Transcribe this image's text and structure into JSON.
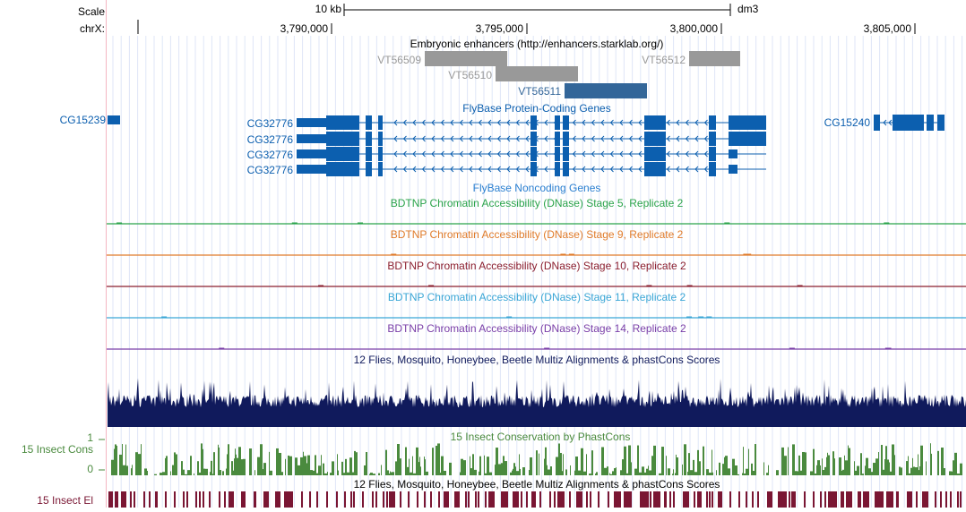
{
  "ruler": {
    "scale_label": "Scale",
    "scale_value": "10 kb",
    "assembly": "dm3",
    "chrom_label": "chrX:",
    "ticks": [
      "3,790,000",
      "3,795,000",
      "3,800,000",
      "3,805,000"
    ]
  },
  "tracks": {
    "enhancers": {
      "title": "Embryonic enhancers (http://enhancers.starklab.org/)",
      "items": [
        {
          "name": "VT56509",
          "color": "#999999"
        },
        {
          "name": "VT56510",
          "color": "#999999"
        },
        {
          "name": "VT56512",
          "color": "#999999"
        },
        {
          "name": "VT56511",
          "color": "#336699"
        }
      ]
    },
    "coding_genes": {
      "title": "FlyBase Protein-Coding Genes",
      "color": "#0c5faf",
      "genes": [
        "CG15239",
        "CG32776",
        "CG32776",
        "CG32776",
        "CG32776",
        "CG15240"
      ]
    },
    "noncoding_genes": {
      "title": "FlyBase Noncoding Genes",
      "color": "#2a7fd0"
    },
    "dnase": [
      {
        "title": "BDTNP Chromatin Accessibility (DNase) Stage 5, Replicate 2",
        "color": "#2aa34a"
      },
      {
        "title": "BDTNP Chromatin Accessibility (DNase) Stage 9, Replicate 2",
        "color": "#e07b2a"
      },
      {
        "title": "BDTNP Chromatin Accessibility (DNase) Stage 10, Replicate 2",
        "color": "#8b1f2f"
      },
      {
        "title": "BDTNP Chromatin Accessibility (DNase) Stage 11, Replicate 2",
        "color": "#3aa6d6"
      },
      {
        "title": "BDTNP Chromatin Accessibility (DNase) Stage 14, Replicate 2",
        "color": "#7a3fa8"
      }
    ],
    "multiz": {
      "title": "12 Flies, Mosquito, Honeybee, Beetle Multiz Alignments & phastCons Scores",
      "color": "#101a5c"
    },
    "phastcons": {
      "title": "15 Insect Conservation by PhastCons",
      "side_label": "15 Insect Cons",
      "axis_max": "1",
      "axis_min": "0",
      "color": "#4a8a3e"
    },
    "elements": {
      "title": "12 Flies, Mosquito, Honeybee, Beetle Multiz Alignments & phastCons Scores",
      "side_label": "15 Insect El",
      "color": "#7a1633"
    }
  }
}
